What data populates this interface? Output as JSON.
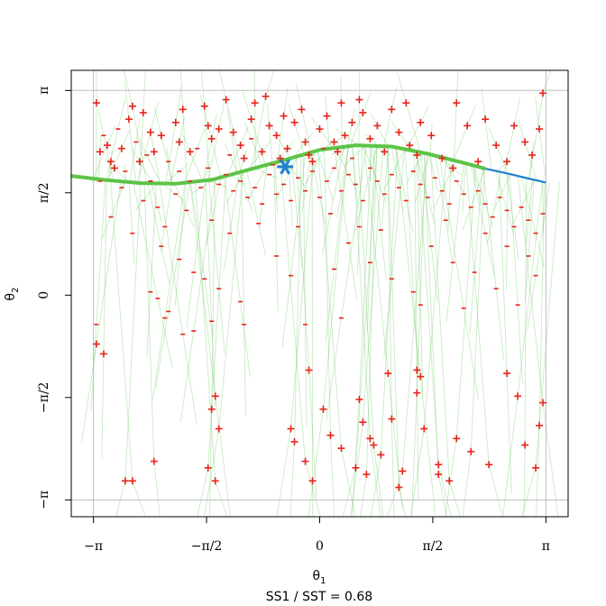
{
  "chart_data": {
    "type": "scatter",
    "xlabel_base": "θ",
    "xlabel_sub": "1",
    "ylabel_base": "θ",
    "ylabel_sub": "2",
    "caption": "SS1 / SST = 0.68",
    "xlim": [
      -3.45,
      3.45
    ],
    "ylim": [
      -3.4,
      3.45
    ],
    "x_ticks": [
      {
        "value": -3.14159,
        "label": "−π"
      },
      {
        "value": -1.5708,
        "label": "−π/2"
      },
      {
        "value": 0,
        "label": "0"
      },
      {
        "value": 1.5708,
        "label": "π/2"
      },
      {
        "value": 3.14159,
        "label": "π"
      }
    ],
    "y_ticks": [
      {
        "value": -3.14159,
        "label": "−π"
      },
      {
        "value": -1.5708,
        "label": "−π/2"
      },
      {
        "value": 0,
        "label": "0"
      },
      {
        "value": 1.5708,
        "label": "π/2"
      },
      {
        "value": 3.14159,
        "label": "π"
      }
    ],
    "reference_lines": [
      {
        "orientation": "horizontal",
        "value": 3.14159
      },
      {
        "orientation": "horizontal",
        "value": -3.14159
      },
      {
        "orientation": "vertical",
        "value": -3.14159
      },
      {
        "orientation": "vertical",
        "value": 3.14159
      }
    ],
    "fitted_curve": {
      "color": "#5cc447",
      "x": [
        -3.45,
        -3.0,
        -2.5,
        -2.0,
        -1.5,
        -1.0,
        -0.5,
        0,
        0.5,
        1.0,
        1.5,
        2.0,
        2.3
      ],
      "y": [
        1.83,
        1.77,
        1.72,
        1.71,
        1.77,
        1.92,
        2.07,
        2.23,
        2.3,
        2.28,
        2.17,
        2.03,
        1.94
      ]
    },
    "curve_extension": {
      "color": "#1f82cf",
      "x": [
        2.3,
        2.6,
        2.9,
        3.14
      ],
      "y": [
        1.94,
        1.87,
        1.79,
        1.73
      ]
    },
    "mean_point": {
      "x": -0.48,
      "y": 1.97,
      "color": "#1f82cf"
    },
    "plus_points": [
      [
        -3.1,
        2.95
      ],
      [
        -2.6,
        2.9
      ],
      [
        -2.45,
        2.8
      ],
      [
        -2.35,
        2.5
      ],
      [
        -2.65,
        2.7
      ],
      [
        -2.2,
        2.45
      ],
      [
        -2.0,
        2.65
      ],
      [
        -1.95,
        2.35
      ],
      [
        -1.8,
        2.2
      ],
      [
        -2.3,
        2.2
      ],
      [
        -2.75,
        2.25
      ],
      [
        -2.9,
        2.05
      ],
      [
        -2.85,
        1.95
      ],
      [
        -3.05,
        2.2
      ],
      [
        -2.95,
        2.3
      ],
      [
        -1.6,
        2.9
      ],
      [
        -1.55,
        2.6
      ],
      [
        -1.5,
        2.4
      ],
      [
        -1.4,
        2.55
      ],
      [
        -1.3,
        3.0
      ],
      [
        -1.2,
        2.5
      ],
      [
        -1.1,
        2.3
      ],
      [
        -1.05,
        2.1
      ],
      [
        -0.95,
        2.7
      ],
      [
        -0.9,
        2.95
      ],
      [
        -0.8,
        2.2
      ],
      [
        -0.7,
        2.6
      ],
      [
        -0.6,
        2.45
      ],
      [
        -0.5,
        2.75
      ],
      [
        -0.45,
        2.25
      ],
      [
        -0.35,
        2.65
      ],
      [
        -0.25,
        2.85
      ],
      [
        -0.2,
        2.35
      ],
      [
        -0.1,
        2.05
      ],
      [
        0.0,
        2.55
      ],
      [
        0.1,
        2.75
      ],
      [
        0.2,
        2.35
      ],
      [
        0.3,
        2.95
      ],
      [
        0.35,
        2.45
      ],
      [
        0.45,
        2.65
      ],
      [
        0.6,
        2.8
      ],
      [
        0.7,
        2.4
      ],
      [
        0.8,
        2.6
      ],
      [
        0.9,
        2.2
      ],
      [
        1.0,
        2.85
      ],
      [
        1.1,
        2.5
      ],
      [
        1.25,
        2.3
      ],
      [
        1.4,
        2.65
      ],
      [
        1.55,
        2.45
      ],
      [
        1.7,
        2.1
      ],
      [
        1.9,
        2.95
      ],
      [
        2.05,
        2.6
      ],
      [
        2.3,
        2.7
      ],
      [
        2.45,
        2.3
      ],
      [
        2.6,
        2.05
      ],
      [
        2.7,
        2.6
      ],
      [
        2.85,
        2.35
      ],
      [
        3.05,
        2.55
      ],
      [
        3.1,
        3.1
      ],
      [
        2.95,
        2.15
      ],
      [
        1.2,
        2.95
      ],
      [
        0.55,
        3.0
      ],
      [
        -0.75,
        3.05
      ],
      [
        -1.9,
        2.85
      ],
      [
        -2.5,
        2.05
      ],
      [
        -0.55,
        2.1
      ],
      [
        -0.15,
        2.15
      ],
      [
        0.25,
        2.2
      ],
      [
        1.35,
        2.15
      ],
      [
        1.85,
        1.95
      ],
      [
        2.2,
        2.05
      ],
      [
        -3.1,
        -0.75
      ],
      [
        -3.0,
        -0.9
      ],
      [
        -1.45,
        -1.55
      ],
      [
        -1.5,
        -1.75
      ],
      [
        -1.4,
        -2.05
      ],
      [
        -2.3,
        -2.55
      ],
      [
        -2.6,
        -2.85
      ],
      [
        -2.7,
        -2.85
      ],
      [
        -1.55,
        -2.65
      ],
      [
        -1.45,
        -2.85
      ],
      [
        -0.15,
        -1.15
      ],
      [
        -0.4,
        -2.05
      ],
      [
        -0.35,
        -2.25
      ],
      [
        -0.2,
        -2.55
      ],
      [
        -0.1,
        -2.85
      ],
      [
        0.05,
        -1.75
      ],
      [
        0.15,
        -2.15
      ],
      [
        0.3,
        -2.35
      ],
      [
        0.55,
        -1.6
      ],
      [
        0.6,
        -1.95
      ],
      [
        0.7,
        -2.2
      ],
      [
        0.75,
        -2.3
      ],
      [
        0.5,
        -2.65
      ],
      [
        0.65,
        -2.75
      ],
      [
        0.95,
        -1.2
      ],
      [
        1.0,
        -1.9
      ],
      [
        1.15,
        -2.7
      ],
      [
        1.35,
        -1.15
      ],
      [
        1.4,
        -1.25
      ],
      [
        1.35,
        -1.5
      ],
      [
        1.45,
        -2.05
      ],
      [
        1.65,
        -2.75
      ],
      [
        1.8,
        -2.85
      ],
      [
        1.9,
        -2.2
      ],
      [
        2.1,
        -2.4
      ],
      [
        2.35,
        -2.6
      ],
      [
        2.6,
        -1.2
      ],
      [
        2.75,
        -1.55
      ],
      [
        2.85,
        -2.3
      ],
      [
        3.1,
        -1.65
      ],
      [
        3.05,
        -2.0
      ],
      [
        3.0,
        -2.65
      ],
      [
        1.1,
        -2.95
      ],
      [
        1.65,
        -2.6
      ],
      [
        0.85,
        -2.45
      ]
    ],
    "minus_points": [
      [
        -3.0,
        2.45
      ],
      [
        -2.8,
        2.55
      ],
      [
        -2.55,
        2.35
      ],
      [
        -2.4,
        2.15
      ],
      [
        -2.1,
        2.05
      ],
      [
        -1.95,
        1.9
      ],
      [
        -1.8,
        1.75
      ],
      [
        -1.65,
        1.65
      ],
      [
        -1.55,
        1.95
      ],
      [
        -1.4,
        1.7
      ],
      [
        -1.3,
        1.85
      ],
      [
        -1.2,
        1.6
      ],
      [
        -1.1,
        1.75
      ],
      [
        -1.0,
        1.5
      ],
      [
        -0.9,
        1.65
      ],
      [
        -0.8,
        1.4
      ],
      [
        -0.7,
        1.85
      ],
      [
        -0.6,
        1.55
      ],
      [
        -0.5,
        1.7
      ],
      [
        -0.4,
        1.45
      ],
      [
        -0.3,
        1.8
      ],
      [
        -0.2,
        1.6
      ],
      [
        -0.1,
        1.9
      ],
      [
        0.0,
        1.5
      ],
      [
        0.1,
        1.75
      ],
      [
        0.2,
        1.95
      ],
      [
        0.3,
        1.6
      ],
      [
        0.4,
        1.85
      ],
      [
        0.5,
        1.7
      ],
      [
        0.6,
        1.45
      ],
      [
        0.7,
        1.95
      ],
      [
        0.8,
        1.75
      ],
      [
        0.9,
        1.55
      ],
      [
        1.0,
        1.85
      ],
      [
        1.1,
        1.65
      ],
      [
        1.2,
        1.45
      ],
      [
        1.3,
        1.9
      ],
      [
        1.4,
        1.7
      ],
      [
        1.5,
        1.5
      ],
      [
        1.6,
        1.8
      ],
      [
        1.7,
        1.6
      ],
      [
        1.8,
        1.4
      ],
      [
        1.9,
        1.75
      ],
      [
        2.0,
        1.55
      ],
      [
        2.1,
        1.35
      ],
      [
        2.2,
        1.6
      ],
      [
        2.3,
        1.4
      ],
      [
        2.4,
        1.2
      ],
      [
        2.5,
        1.5
      ],
      [
        2.6,
        1.3
      ],
      [
        2.7,
        1.05
      ],
      [
        2.8,
        1.35
      ],
      [
        2.9,
        1.15
      ],
      [
        3.0,
        0.95
      ],
      [
        3.1,
        1.25
      ],
      [
        -2.9,
        1.2
      ],
      [
        -2.6,
        0.95
      ],
      [
        -2.2,
        0.75
      ],
      [
        -1.95,
        0.55
      ],
      [
        -1.75,
        0.35
      ],
      [
        -1.4,
        0.1
      ],
      [
        -1.1,
        -0.1
      ],
      [
        -2.1,
        -0.25
      ],
      [
        -2.35,
        0.05
      ],
      [
        -1.6,
        0.25
      ],
      [
        -0.6,
        0.6
      ],
      [
        -0.4,
        0.3
      ],
      [
        -0.2,
        -0.45
      ],
      [
        0.4,
        0.8
      ],
      [
        0.7,
        0.5
      ],
      [
        1.0,
        0.25
      ],
      [
        1.3,
        0.05
      ],
      [
        1.55,
        0.75
      ],
      [
        1.85,
        0.5
      ],
      [
        2.15,
        0.35
      ],
      [
        2.45,
        0.1
      ],
      [
        2.75,
        -0.15
      ],
      [
        3.0,
        0.3
      ],
      [
        2.6,
        0.75
      ],
      [
        2.3,
        0.95
      ],
      [
        -2.75,
        1.65
      ],
      [
        -2.45,
        1.45
      ],
      [
        -2.25,
        1.35
      ],
      [
        -1.85,
        1.3
      ],
      [
        -1.5,
        1.15
      ],
      [
        -1.25,
        0.95
      ],
      [
        -0.85,
        1.1
      ],
      [
        -0.3,
        1.05
      ],
      [
        0.15,
        1.25
      ],
      [
        0.55,
        1.05
      ],
      [
        -2.0,
        1.55
      ],
      [
        -2.7,
        1.9
      ],
      [
        -3.05,
        1.75
      ],
      [
        -2.35,
        1.75
      ],
      [
        -1.7,
        2.25
      ],
      [
        -1.25,
        2.15
      ],
      [
        -0.95,
        2.4
      ],
      [
        -0.65,
        2.0
      ],
      [
        0.05,
        2.25
      ],
      [
        0.45,
        2.1
      ],
      [
        -3.1,
        -0.45
      ],
      [
        -2.25,
        -0.05
      ],
      [
        -1.05,
        -0.45
      ],
      [
        0.3,
        -0.35
      ],
      [
        1.4,
        -0.15
      ],
      [
        2.0,
        -0.2
      ],
      [
        2.9,
        0.6
      ],
      [
        -1.75,
        -0.55
      ],
      [
        0.85,
        1.0
      ],
      [
        1.75,
        1.15
      ],
      [
        -2.15,
        -0.35
      ],
      [
        -2.15,
        1.05
      ],
      [
        -1.9,
        -0.6
      ],
      [
        -1.5,
        -0.4
      ],
      [
        0.2,
        0.4
      ]
    ]
  }
}
